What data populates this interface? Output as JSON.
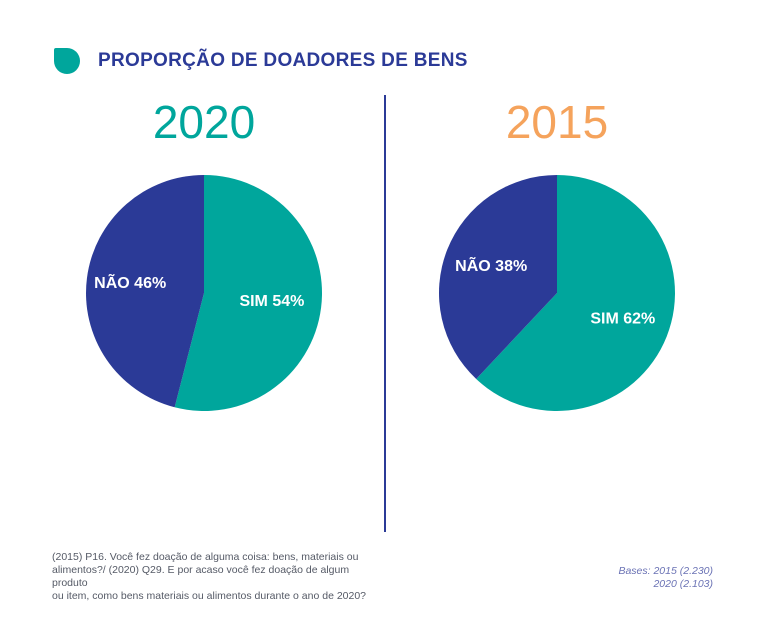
{
  "header": {
    "title": "PROPORÇÃO DE DOADORES DE BENS"
  },
  "colors": {
    "navy": "#2b3a97",
    "teal": "#00a69c",
    "orange": "#f5a35c"
  },
  "chart_data": [
    {
      "type": "pie",
      "title": "2020",
      "slices": [
        {
          "label": "SIM 54%",
          "value": 54,
          "color": "#00a69c"
        },
        {
          "label": "NÃO 46%",
          "value": 46,
          "color": "#2b3a97"
        }
      ]
    },
    {
      "type": "pie",
      "title": "2015",
      "slices": [
        {
          "label": "SIM 62%",
          "value": 62,
          "color": "#00a69c"
        },
        {
          "label": "NÃO 38%",
          "value": 38,
          "color": "#2b3a97"
        }
      ]
    }
  ],
  "footnote": {
    "line1": "(2015) P16. Você fez doação de alguma coisa: bens, materiais ou",
    "line2": "alimentos?/ (2020) Q29. E por acaso você fez doação de algum produto",
    "line3": "ou item, como bens materiais ou alimentos durante o ano de 2020?"
  },
  "bases": {
    "line1": "Bases: 2015 (2.230)",
    "line2": "2020 (2.103)"
  }
}
